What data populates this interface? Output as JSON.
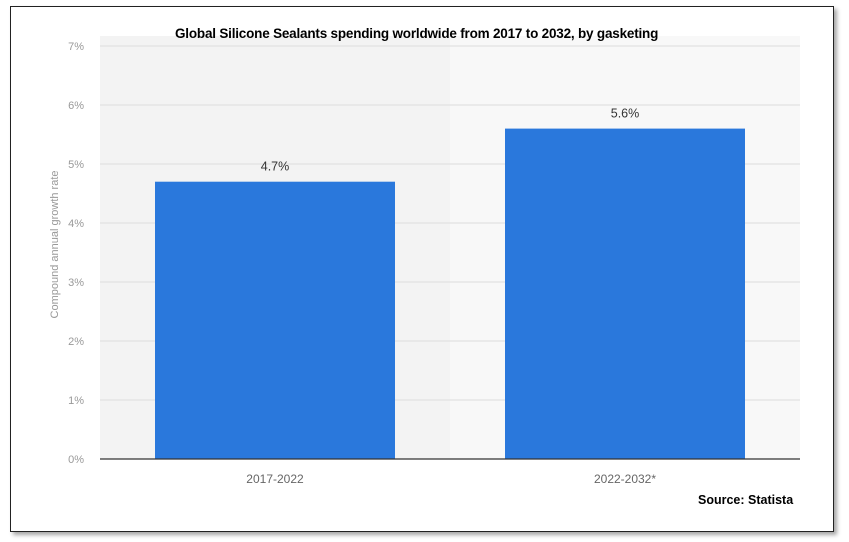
{
  "chart_data": {
    "type": "bar",
    "title": "Global Silicone Sealants spending worldwide from 2017 to 2032, by gasketing",
    "categories": [
      "2017-2022",
      "2022-2032*"
    ],
    "values": [
      4.7,
      5.6
    ],
    "data_labels": [
      "4.7%",
      "5.6%"
    ],
    "ylabel": "Compound annual growth rate",
    "xlabel": "",
    "ylim": [
      0,
      7
    ],
    "yticks": [
      "0%",
      "1%",
      "2%",
      "3%",
      "4%",
      "5%",
      "6%",
      "7%"
    ],
    "grid": true,
    "bar_color": "#2a78dc",
    "source": "Source: Statista"
  }
}
